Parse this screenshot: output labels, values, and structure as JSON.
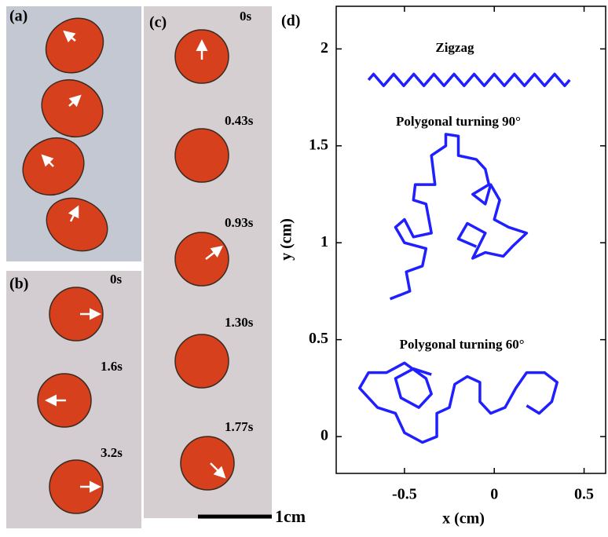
{
  "panels": {
    "a": {
      "label": "(a)"
    },
    "b": {
      "label": "(b)",
      "times": [
        "0s",
        "1.6s",
        "3.2s"
      ]
    },
    "c": {
      "label": "(c)",
      "times": [
        "0s",
        "0.43s",
        "0.93s",
        "1.30s",
        "1.77s"
      ]
    }
  },
  "scale_bar": "1cm",
  "chart_data": {
    "type": "line",
    "panel_label": "(d)",
    "xlabel": "x (cm)",
    "ylabel": "y (cm)",
    "xlim": [
      -0.88,
      0.62
    ],
    "ylim": [
      -0.19,
      2.22
    ],
    "xticks": [
      -0.5,
      0,
      0.5
    ],
    "yticks": [
      0,
      0.5,
      1,
      1.5,
      2
    ],
    "annotations": [
      {
        "text": "Zigzag",
        "x": -0.22,
        "y": 2.0
      },
      {
        "text": "Polygonal turning 90°",
        "x": -0.2,
        "y": 1.62
      },
      {
        "text": "Polygonal turning 60°",
        "x": -0.18,
        "y": 0.47
      }
    ],
    "series": [
      {
        "color": "#1f1fff",
        "x": [
          -0.7,
          -0.672,
          -0.644,
          -0.616,
          -0.588,
          -0.56,
          -0.532,
          -0.504,
          -0.476,
          -0.448,
          -0.42,
          -0.392,
          -0.364,
          -0.336,
          -0.308,
          -0.28,
          -0.252,
          -0.224,
          -0.196,
          -0.168,
          -0.14,
          -0.112,
          -0.084,
          -0.056,
          -0.028,
          0.0,
          0.028,
          0.056,
          0.084,
          0.112,
          0.14,
          0.168,
          0.196,
          0.224,
          0.252,
          0.28,
          0.308,
          0.336,
          0.364,
          0.392,
          0.42
        ],
        "values": [
          1.84,
          1.87,
          1.84,
          1.81,
          1.84,
          1.87,
          1.84,
          1.81,
          1.84,
          1.87,
          1.84,
          1.81,
          1.84,
          1.87,
          1.84,
          1.81,
          1.84,
          1.87,
          1.84,
          1.81,
          1.84,
          1.87,
          1.84,
          1.81,
          1.84,
          1.87,
          1.84,
          1.81,
          1.84,
          1.87,
          1.84,
          1.81,
          1.84,
          1.87,
          1.84,
          1.81,
          1.84,
          1.87,
          1.84,
          1.81,
          1.84
        ]
      },
      {
        "color": "#1f1fff",
        "x": [
          -0.58,
          -0.47,
          -0.49,
          -0.4,
          -0.38,
          -0.5,
          -0.55,
          -0.5,
          -0.45,
          -0.35,
          -0.38,
          -0.45,
          -0.44,
          -0.33,
          -0.35,
          -0.27,
          -0.27,
          -0.2,
          -0.2,
          -0.1,
          -0.05,
          -0.03,
          -0.12,
          -0.05,
          -0.02,
          0.03,
          0.0,
          0.08,
          0.18,
          0.1,
          0.05,
          -0.05,
          -0.12,
          -0.05,
          -0.15,
          -0.2,
          -0.1
        ],
        "values": [
          0.71,
          0.75,
          0.85,
          0.88,
          0.97,
          1.0,
          1.08,
          1.12,
          1.03,
          1.05,
          1.2,
          1.22,
          1.3,
          1.3,
          1.45,
          1.5,
          1.56,
          1.55,
          1.45,
          1.43,
          1.38,
          1.3,
          1.25,
          1.2,
          1.3,
          1.22,
          1.12,
          1.08,
          1.05,
          0.98,
          0.93,
          0.95,
          0.92,
          1.05,
          1.1,
          1.02,
          0.98
        ]
      },
      {
        "color": "#1f1fff",
        "x": [
          0.18,
          0.25,
          0.32,
          0.35,
          0.28,
          0.18,
          0.12,
          0.06,
          -0.02,
          -0.08,
          -0.08,
          -0.15,
          -0.22,
          -0.25,
          -0.32,
          -0.32,
          -0.4,
          -0.5,
          -0.55,
          -0.65,
          -0.75,
          -0.7,
          -0.6,
          -0.5,
          -0.38,
          -0.35,
          -0.42,
          -0.52,
          -0.55,
          -0.45,
          -0.35
        ],
        "values": [
          0.16,
          0.12,
          0.18,
          0.28,
          0.33,
          0.33,
          0.25,
          0.15,
          0.12,
          0.18,
          0.28,
          0.31,
          0.27,
          0.15,
          0.12,
          0.0,
          -0.03,
          0.02,
          0.12,
          0.15,
          0.25,
          0.33,
          0.33,
          0.38,
          0.3,
          0.22,
          0.15,
          0.2,
          0.3,
          0.35,
          0.32
        ]
      }
    ]
  }
}
